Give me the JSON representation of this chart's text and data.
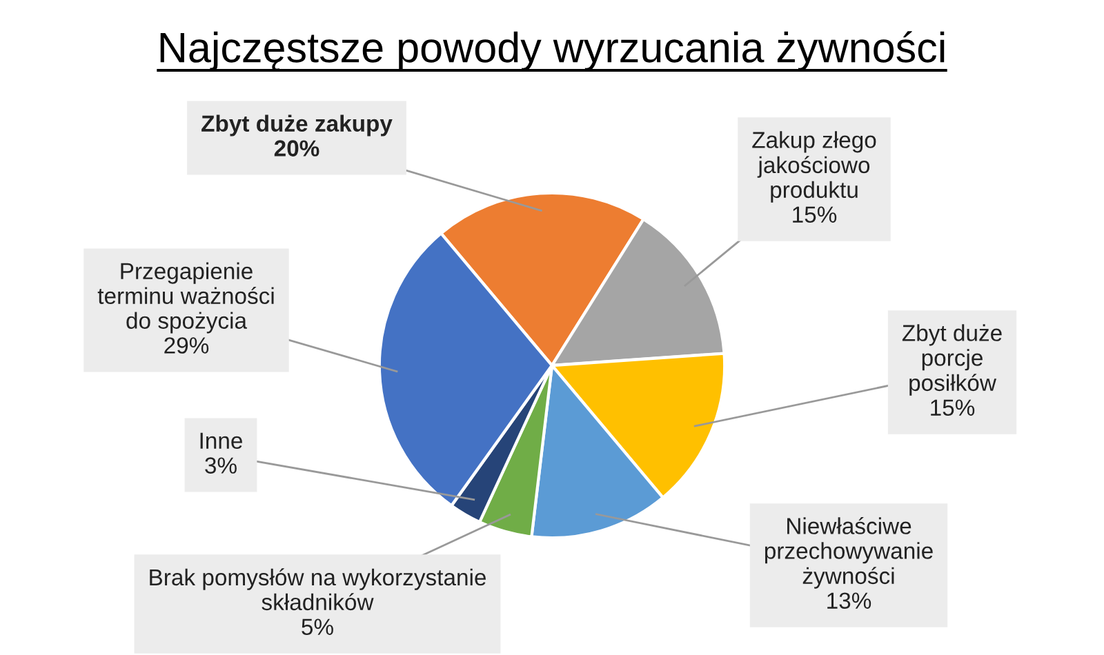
{
  "chart_data": {
    "type": "pie",
    "title": "Najczęstsze powody wyrzucania żywności",
    "categories": [
      "Zbyt duże zakupy",
      "Zakup złego\njakościowo\nproduktu",
      "Zbyt duże\nporcje\nposiłków",
      "Niewłaściwe\nprzechowywanie\nżywności",
      "Brak pomysłów na wykorzystanie\nskładników",
      "Inne",
      "Przegapienie\nterminu ważności\ndo spożycia"
    ],
    "values": [
      20,
      15,
      15,
      13,
      5,
      3,
      29
    ],
    "value_labels": [
      "20%",
      "15%",
      "15%",
      "13%",
      "5%",
      "3%",
      "29%"
    ],
    "colors": [
      "#ed7d31",
      "#a5a5a5",
      "#ffc000",
      "#5b9bd5",
      "#70ad47",
      "#264478",
      "#4472c4"
    ]
  }
}
